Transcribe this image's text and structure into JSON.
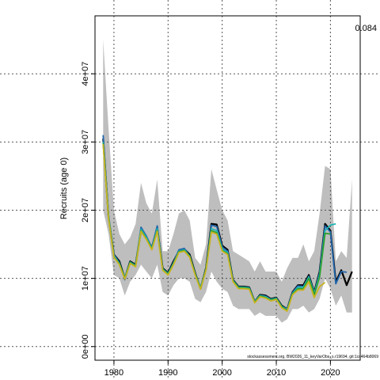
{
  "chart_data": {
    "type": "line",
    "ylabel": "Recruits (age 0)",
    "xlabel": "",
    "corner_value": "0.084",
    "footer": "stockassessment.org, BW2026_11_keyVarObs_s.r19694, git:1cc464b8069",
    "xlim": [
      1976.5,
      2025.5
    ],
    "ylim": [
      -2000000,
      48500000
    ],
    "x_ticks": [
      1980,
      1990,
      2000,
      2010,
      2020
    ],
    "x_tick_labels": [
      "1980",
      "1990",
      "2000",
      "2010",
      "2020"
    ],
    "y_ticks": [
      0,
      10000000,
      20000000,
      30000000,
      40000000
    ],
    "y_tick_labels": [
      "0e+00",
      "1e+07",
      "2e+07",
      "3e+07",
      "4e+07"
    ],
    "grid": true,
    "colors": {
      "band": "#bebebe",
      "series": [
        "#000000",
        "#2166ac",
        "#1fb5b5",
        "#2ca02c",
        "#c8b41e"
      ]
    },
    "band": {
      "x": [
        1978,
        1979,
        1980,
        1981,
        1982,
        1983,
        1984,
        1985,
        1986,
        1987,
        1988,
        1989,
        1990,
        1991,
        1992,
        1993,
        1994,
        1995,
        1996,
        1997,
        1998,
        1999,
        2000,
        2001,
        2002,
        2003,
        2004,
        2005,
        2006,
        2007,
        2008,
        2009,
        2010,
        2011,
        2012,
        2013,
        2014,
        2015,
        2016,
        2017,
        2018,
        2019,
        2020,
        2021,
        2022,
        2023,
        2024
      ],
      "upper": [
        45000000,
        32000000,
        20000000,
        16500000,
        15000000,
        16000000,
        18000000,
        24000000,
        21000000,
        19500000,
        24500000,
        14000000,
        14000000,
        16500000,
        19500000,
        20000000,
        18500000,
        13000000,
        12000000,
        15000000,
        26000000,
        23000000,
        20000000,
        18500000,
        14000000,
        13500000,
        13000000,
        12500000,
        11000000,
        12500000,
        11000000,
        11000000,
        11000000,
        9500000,
        11500000,
        13000000,
        13000000,
        15000000,
        12500000,
        14000000,
        19500000,
        26500000,
        26000000,
        12500000,
        14000000,
        13000000,
        24500000
      ],
      "lower": [
        20000000,
        16500000,
        10500000,
        10000000,
        7500000,
        9500000,
        10500000,
        12000000,
        11000000,
        10000000,
        12000000,
        8000000,
        7500000,
        9000000,
        10000000,
        10000000,
        9500000,
        7000000,
        6500000,
        8000000,
        11000000,
        9500000,
        8500000,
        8000000,
        6000000,
        5500000,
        5500000,
        5500000,
        4500000,
        5000000,
        4500000,
        4500000,
        4500000,
        3500000,
        4000000,
        5500000,
        5500000,
        6000000,
        5000000,
        5500000,
        7000000,
        10000000,
        8500000,
        6000000,
        7500000,
        5000000,
        5000000
      ]
    },
    "series": [
      {
        "x": [
          1978,
          1979,
          1980,
          1981,
          1982,
          1983,
          1984,
          1985,
          1986,
          1987,
          1988,
          1989,
          1990,
          1991,
          1992,
          1993,
          1994,
          1995,
          1996,
          1997,
          1998,
          1999,
          2000,
          2001,
          2002,
          2003,
          2004,
          2005,
          2006,
          2007,
          2008,
          2009,
          2010,
          2011,
          2012,
          2013,
          2014,
          2015,
          2016,
          2017,
          2018,
          2019,
          2020,
          2021,
          2022,
          2023,
          2024
        ],
        "values": [
          30500000,
          19000000,
          13500000,
          12500000,
          10000000,
          12500000,
          12000000,
          17000000,
          16000000,
          14500000,
          17500000,
          11500000,
          10800000,
          12500000,
          14000000,
          14300000,
          13500000,
          10800000,
          8500000,
          11500000,
          18000000,
          17900000,
          14800000,
          14200000,
          9800000,
          8800000,
          8800000,
          8700000,
          6600000,
          7600000,
          7500000,
          7000000,
          7200000,
          6000000,
          5500000,
          8000000,
          9000000,
          9000000,
          10500000,
          8000000,
          11000000,
          18000000,
          17000000,
          9500000,
          11200000,
          9000000,
          11000000
        ]
      },
      {
        "x": [
          1978,
          1979,
          1980,
          1981,
          1982,
          1983,
          1984,
          1985,
          1986,
          1987,
          1988,
          1989,
          1990,
          1991,
          1992,
          1993,
          1994,
          1995,
          1996,
          1997,
          1998,
          1999,
          2000,
          2001,
          2002,
          2003,
          2004,
          2005,
          2006,
          2007,
          2008,
          2009,
          2010,
          2011,
          2012,
          2013,
          2014,
          2015,
          2016,
          2017,
          2018,
          2019,
          2020,
          2021,
          2022,
          2023
        ],
        "values": [
          31000000,
          19000000,
          13500000,
          12300000,
          9800000,
          12300000,
          11800000,
          17500000,
          16200000,
          14500000,
          17700000,
          11300000,
          10700000,
          12300000,
          14200000,
          14400000,
          13200000,
          10600000,
          8500000,
          11300000,
          17800000,
          17600000,
          14600000,
          14000000,
          9700000,
          8700000,
          8700000,
          8600000,
          6600000,
          7500000,
          7400000,
          6900000,
          7100000,
          5900000,
          5500000,
          7900000,
          8900000,
          8800000,
          10300000,
          7900000,
          10800000,
          17700000,
          16800000,
          9200000,
          11000000,
          10900000
        ]
      },
      {
        "x": [
          1978,
          1979,
          1980,
          1981,
          1982,
          1983,
          1984,
          1985,
          1986,
          1987,
          1988,
          1989,
          1990,
          1991,
          1992,
          1993,
          1994,
          1995,
          1996,
          1997,
          1998,
          1999,
          2000,
          2001,
          2002,
          2003,
          2004,
          2005,
          2006,
          2007,
          2008,
          2009,
          2010,
          2011,
          2012,
          2013,
          2014,
          2015,
          2016,
          2017,
          2018,
          2019,
          2020,
          2021
        ],
        "values": [
          30000000,
          19200000,
          13300000,
          12200000,
          10100000,
          12400000,
          11900000,
          17200000,
          16000000,
          14400000,
          17300000,
          11400000,
          10700000,
          12200000,
          14000000,
          14200000,
          13300000,
          10700000,
          8600000,
          11400000,
          17300000,
          17000000,
          14300000,
          13800000,
          9700000,
          8700000,
          8700000,
          8600000,
          6600000,
          7500000,
          7300000,
          6900000,
          7100000,
          5900000,
          5400000,
          7800000,
          8700000,
          8700000,
          10200000,
          7800000,
          10500000,
          17000000,
          17800000,
          18000000
        ]
      },
      {
        "x": [
          1978,
          1979,
          1980,
          1981,
          1982,
          1983,
          1984,
          1985,
          1986,
          1987,
          1988,
          1989,
          1990,
          1991,
          1992,
          1993,
          1994,
          1995,
          1996,
          1997,
          1998,
          1999,
          2000,
          2001,
          2002,
          2003,
          2004,
          2005,
          2006,
          2007,
          2008,
          2009,
          2010,
          2011,
          2012,
          2013,
          2014,
          2015,
          2016,
          2017,
          2018,
          2019,
          2020
        ],
        "values": [
          29800000,
          18900000,
          13200000,
          12100000,
          10000000,
          12300000,
          11800000,
          17000000,
          15800000,
          14300000,
          17000000,
          11300000,
          10600000,
          12100000,
          13900000,
          14100000,
          13200000,
          10600000,
          8500000,
          11300000,
          17000000,
          16700000,
          14100000,
          13600000,
          9600000,
          8600000,
          8600000,
          8500000,
          6500000,
          7400000,
          7200000,
          6800000,
          7000000,
          5800000,
          5300000,
          7700000,
          8500000,
          8500000,
          10000000,
          7600000,
          10200000,
          16600000,
          16500000
        ]
      },
      {
        "x": [
          1978,
          1979,
          1980,
          1981,
          1982,
          1983,
          1984,
          1985,
          1986,
          1987,
          1988,
          1989,
          1990,
          1991,
          1992,
          1993,
          1994,
          1995,
          1996,
          1997,
          1998,
          1999,
          2000,
          2001,
          2002,
          2003,
          2004,
          2005,
          2006,
          2007,
          2008,
          2009,
          2010,
          2011,
          2012,
          2013,
          2014,
          2015,
          2016,
          2017,
          2018,
          2019
        ],
        "values": [
          29700000,
          18800000,
          13100000,
          12000000,
          9900000,
          12200000,
          11700000,
          16900000,
          15700000,
          14200000,
          16900000,
          11200000,
          10500000,
          12000000,
          13800000,
          14000000,
          13100000,
          10500000,
          8400000,
          11200000,
          16800000,
          16500000,
          14000000,
          13500000,
          9500000,
          8500000,
          8500000,
          8400000,
          6400000,
          7300000,
          7100000,
          6700000,
          6900000,
          5700000,
          5200000,
          7600000,
          8300000,
          8300000,
          9500000,
          7200000,
          8800000,
          9400000
        ]
      }
    ]
  }
}
